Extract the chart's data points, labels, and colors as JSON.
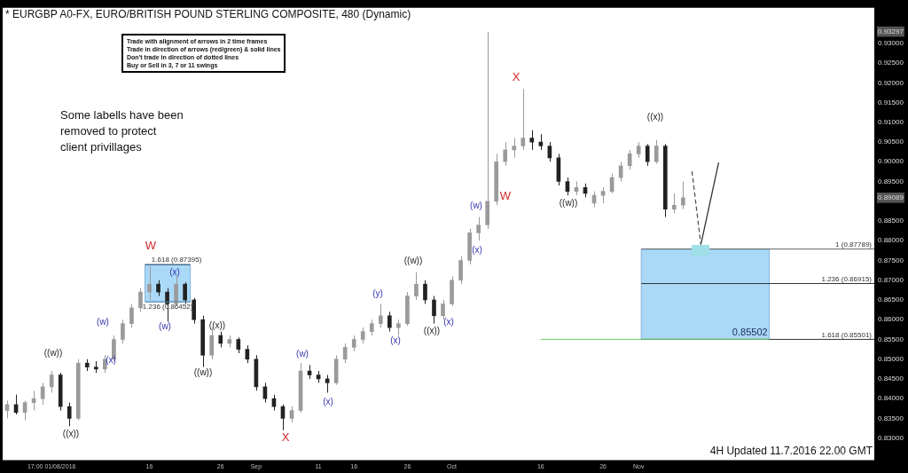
{
  "chart_data": {
    "type": "candlestick",
    "title": "* EURGBP A0-FX, EURO/BRITISH POUND STERLING COMPOSITE, 480 (Dynamic)",
    "categories": [
      null,
      null,
      null,
      null,
      null,
      "17:00 01/08/2016",
      null,
      null,
      null,
      null,
      null,
      null,
      null,
      null,
      null,
      null,
      "16",
      null,
      null,
      null,
      null,
      null,
      null,
      null,
      "26",
      null,
      null,
      null,
      "Sep",
      null,
      null,
      null,
      null,
      null,
      null,
      "11",
      null,
      null,
      null,
      "16",
      null,
      null,
      null,
      null,
      null,
      "26",
      null,
      null,
      null,
      null,
      "Oct",
      null,
      null,
      null,
      null,
      null,
      null,
      null,
      null,
      null,
      "16",
      null,
      null,
      null,
      null,
      null,
      null,
      "26",
      null,
      null,
      null,
      "Nov",
      null,
      null,
      null,
      null,
      null,
      null,
      null,
      null,
      null,
      null,
      null,
      null,
      null,
      null,
      null,
      null,
      null,
      null,
      null,
      null,
      null,
      null,
      null,
      null,
      null,
      null
    ],
    "ohlc": [
      [
        0.837,
        0.8395,
        0.835,
        0.8385
      ],
      [
        0.8385,
        0.841,
        0.836,
        0.8365
      ],
      [
        0.8365,
        0.8395,
        0.8345,
        0.839
      ],
      [
        0.839,
        0.842,
        0.837,
        0.84
      ],
      [
        0.84,
        0.844,
        0.8385,
        0.843
      ],
      [
        0.843,
        0.847,
        0.8415,
        0.846
      ],
      [
        0.846,
        0.8465,
        0.837,
        0.838
      ],
      [
        0.838,
        0.839,
        0.833,
        0.835
      ],
      [
        0.835,
        0.85,
        0.8345,
        0.849
      ],
      [
        0.849,
        0.85,
        0.847,
        0.848
      ],
      [
        0.848,
        0.8495,
        0.8465,
        0.8475
      ],
      [
        0.8475,
        0.851,
        0.8465,
        0.85
      ],
      [
        0.85,
        0.856,
        0.8495,
        0.855
      ],
      [
        0.855,
        0.86,
        0.854,
        0.859
      ],
      [
        0.859,
        0.864,
        0.858,
        0.863
      ],
      [
        0.863,
        0.868,
        0.862,
        0.867
      ],
      [
        0.867,
        0.8735,
        0.865,
        0.869
      ],
      [
        0.869,
        0.87,
        0.866,
        0.867
      ],
      [
        0.867,
        0.868,
        0.8595,
        0.864
      ],
      [
        0.864,
        0.871,
        0.8635,
        0.869
      ],
      [
        0.869,
        0.8695,
        0.864,
        0.865
      ],
      [
        0.865,
        0.8655,
        0.859,
        0.86
      ],
      [
        0.86,
        0.861,
        0.848,
        0.851
      ],
      [
        0.851,
        0.858,
        0.85,
        0.856
      ],
      [
        0.856,
        0.857,
        0.853,
        0.854
      ],
      [
        0.854,
        0.856,
        0.853,
        0.855
      ],
      [
        0.855,
        0.8555,
        0.8515,
        0.8525
      ],
      [
        0.8525,
        0.8535,
        0.849,
        0.85
      ],
      [
        0.85,
        0.851,
        0.842,
        0.843
      ],
      [
        0.843,
        0.844,
        0.839,
        0.84
      ],
      [
        0.84,
        0.841,
        0.837,
        0.838
      ],
      [
        0.838,
        0.8385,
        0.832,
        0.835
      ],
      [
        0.835,
        0.838,
        0.834,
        0.837
      ],
      [
        0.837,
        0.849,
        0.8365,
        0.847
      ],
      [
        0.847,
        0.8485,
        0.845,
        0.846
      ],
      [
        0.846,
        0.847,
        0.844,
        0.845
      ],
      [
        0.845,
        0.846,
        0.8415,
        0.844
      ],
      [
        0.844,
        0.851,
        0.8435,
        0.85
      ],
      [
        0.85,
        0.854,
        0.849,
        0.853
      ],
      [
        0.853,
        0.856,
        0.852,
        0.855
      ],
      [
        0.855,
        0.858,
        0.854,
        0.857
      ],
      [
        0.857,
        0.86,
        0.856,
        0.859
      ],
      [
        0.859,
        0.864,
        0.858,
        0.861
      ],
      [
        0.861,
        0.862,
        0.857,
        0.858
      ],
      [
        0.858,
        0.86,
        0.856,
        0.859
      ],
      [
        0.859,
        0.867,
        0.8585,
        0.866
      ],
      [
        0.866,
        0.872,
        0.865,
        0.869
      ],
      [
        0.869,
        0.87,
        0.864,
        0.865
      ],
      [
        0.865,
        0.866,
        0.859,
        0.861
      ],
      [
        0.861,
        0.865,
        0.86,
        0.864
      ],
      [
        0.864,
        0.871,
        0.8635,
        0.87
      ],
      [
        0.87,
        0.876,
        0.869,
        0.875
      ],
      [
        0.875,
        0.883,
        0.874,
        0.882
      ],
      [
        0.882,
        0.886,
        0.88,
        0.884
      ],
      [
        0.884,
        0.9329,
        0.883,
        0.89
      ],
      [
        0.89,
        0.902,
        0.889,
        0.9
      ],
      [
        0.9,
        0.905,
        0.899,
        0.903
      ],
      [
        0.903,
        0.906,
        0.901,
        0.904
      ],
      [
        0.904,
        0.9184,
        0.903,
        0.906
      ],
      [
        0.906,
        0.908,
        0.903,
        0.905
      ],
      [
        0.905,
        0.907,
        0.903,
        0.904
      ],
      [
        0.904,
        0.905,
        0.9,
        0.901
      ],
      [
        0.901,
        0.902,
        0.894,
        0.895
      ],
      [
        0.895,
        0.896,
        0.8915,
        0.8925
      ],
      [
        0.8925,
        0.895,
        0.8915,
        0.8935
      ],
      [
        0.8935,
        0.8945,
        0.891,
        0.892
      ],
      [
        0.8895,
        0.8925,
        0.8885,
        0.8915
      ],
      [
        0.8915,
        0.8935,
        0.8895,
        0.8925
      ],
      [
        0.8925,
        0.897,
        0.892,
        0.896
      ],
      [
        0.896,
        0.9,
        0.895,
        0.899
      ],
      [
        0.899,
        0.903,
        0.898,
        0.902
      ],
      [
        0.902,
        0.905,
        0.901,
        0.904
      ],
      [
        0.904,
        0.9045,
        0.899,
        0.9
      ],
      [
        0.9,
        0.9055,
        0.8995,
        0.904
      ],
      [
        0.904,
        0.9045,
        0.886,
        0.888
      ],
      [
        0.888,
        0.892,
        0.887,
        0.889
      ],
      [
        0.889,
        0.895,
        0.888,
        0.8909
      ],
      null,
      null,
      null,
      null,
      null,
      null,
      null,
      null,
      null,
      null,
      null,
      null,
      null,
      null,
      null,
      null,
      null,
      null,
      null,
      null,
      null
    ],
    "colors": [
      "#9a9a9a",
      "#222222",
      "#9a9a9a",
      "#9a9a9a",
      "#9a9a9a",
      "#9a9a9a",
      "#222222",
      "#222222",
      "#9a9a9a",
      "#222222",
      "#222222",
      "#9a9a9a",
      "#9a9a9a",
      "#9a9a9a",
      "#9a9a9a",
      "#9a9a9a",
      "#9a9a9a",
      "#222222",
      "#222222",
      "#9a9a9a",
      "#222222",
      "#222222",
      "#222222",
      "#9a9a9a",
      "#222222",
      "#9a9a9a",
      "#222222",
      "#222222",
      "#222222",
      "#222222",
      "#222222",
      "#222222",
      "#9a9a9a",
      "#9a9a9a",
      "#222222",
      "#222222",
      "#222222",
      "#9a9a9a",
      "#9a9a9a",
      "#9a9a9a",
      "#9a9a9a",
      "#9a9a9a",
      "#9a9a9a",
      "#222222",
      "#9a9a9a",
      "#9a9a9a",
      "#9a9a9a",
      "#222222",
      "#222222",
      "#9a9a9a",
      "#9a9a9a",
      "#9a9a9a",
      "#9a9a9a",
      "#9a9a9a",
      "#9a9a9a",
      "#9a9a9a",
      "#9a9a9a",
      "#9a9a9a",
      "#9a9a9a",
      "#222222",
      "#222222",
      "#222222",
      "#222222",
      "#222222",
      "#9a9a9a",
      "#222222",
      "#9a9a9a",
      "#9a9a9a",
      "#9a9a9a",
      "#9a9a9a",
      "#9a9a9a",
      "#9a9a9a",
      "#222222",
      "#9a9a9a",
      "#222222",
      "#9a9a9a",
      "#9a9a9a",
      null,
      null,
      null,
      null,
      null,
      null,
      null,
      null,
      null,
      null,
      null,
      null,
      null,
      null,
      null,
      null,
      null,
      null,
      null,
      null,
      null
    ],
    "series": [
      {
        "type": "line",
        "values": [
          null,
          null,
          null,
          null,
          null,
          null,
          null,
          null,
          null,
          null,
          null,
          null,
          null,
          null,
          null,
          null,
          null,
          null,
          null,
          null,
          null,
          null,
          null,
          null,
          null,
          null,
          null,
          null,
          null,
          null,
          null,
          null,
          null,
          null,
          null,
          null,
          null,
          null,
          null,
          null,
          null,
          null,
          null,
          null,
          null,
          null,
          null,
          null,
          null,
          null,
          null,
          null,
          null,
          null,
          null,
          null,
          null,
          null,
          null,
          null,
          null,
          null,
          null,
          null,
          null,
          null,
          null,
          null,
          null,
          null,
          null,
          null,
          null,
          null,
          null,
          null,
          null,
          0.8976,
          0.879,
          null,
          null,
          null,
          null,
          null,
          null,
          null,
          null,
          null,
          null,
          null,
          null,
          null,
          null,
          null,
          null,
          null,
          null,
          null
        ],
        "color": "#555555",
        "line_style": "dashed"
      },
      {
        "type": "line",
        "values": [
          null,
          null,
          null,
          null,
          null,
          null,
          null,
          null,
          null,
          null,
          null,
          null,
          null,
          null,
          null,
          null,
          null,
          null,
          null,
          null,
          null,
          null,
          null,
          null,
          null,
          null,
          null,
          null,
          null,
          null,
          null,
          null,
          null,
          null,
          null,
          null,
          null,
          null,
          null,
          null,
          null,
          null,
          null,
          null,
          null,
          null,
          null,
          null,
          null,
          null,
          null,
          null,
          null,
          null,
          null,
          null,
          null,
          null,
          null,
          null,
          null,
          null,
          null,
          null,
          null,
          null,
          null,
          null,
          null,
          null,
          null,
          null,
          null,
          null,
          null,
          null,
          null,
          null,
          0.879,
          null,
          0.8998,
          null,
          null,
          null,
          null,
          null,
          null,
          null,
          null,
          null,
          null,
          null,
          null,
          null,
          null,
          null,
          null,
          null
        ],
        "color": "#333333",
        "line_style": "solid"
      }
    ],
    "ylim": [
      0.8244,
      0.939
    ],
    "yticks": [
      {
        "value": 0.83,
        "label": "0.83000"
      },
      {
        "value": 0.835,
        "label": "0.83500"
      },
      {
        "value": 0.84,
        "label": "0.84000"
      },
      {
        "value": 0.845,
        "label": "0.84500"
      },
      {
        "value": 0.85,
        "label": "0.85000"
      },
      {
        "value": 0.855,
        "label": "0.85500"
      },
      {
        "value": 0.86,
        "label": "0.86000"
      },
      {
        "value": 0.865,
        "label": "0.86500"
      },
      {
        "value": 0.87,
        "label": "0.87000"
      },
      {
        "value": 0.875,
        "label": "0.87500"
      },
      {
        "value": 0.88,
        "label": "0.88000"
      },
      {
        "value": 0.885,
        "label": "0.88500"
      },
      {
        "value": 0.89089,
        "label": "0.89089"
      },
      {
        "value": 0.895,
        "label": "0.89500"
      },
      {
        "value": 0.9,
        "label": "0.90000"
      },
      {
        "value": 0.905,
        "label": "0.90500"
      },
      {
        "value": 0.91,
        "label": "0.91000"
      },
      {
        "value": 0.915,
        "label": "0.91500"
      },
      {
        "value": 0.92,
        "label": "0.92000"
      },
      {
        "value": 0.925,
        "label": "0.92500"
      },
      {
        "value": 0.93,
        "label": "0.93000"
      },
      {
        "value": 0.93297,
        "label": "0.93297"
      }
    ],
    "bands": [
      {
        "axis": "y",
        "from": 0.86452,
        "to": 0.87395,
        "color": "#aad8f7"
      },
      {
        "axis": "y",
        "from": 0.85501,
        "to": 0.87789,
        "color": "#aad8f7"
      }
    ],
    "ref_lines": [
      {
        "axis": "y",
        "value": 0.87395,
        "label": "1.618 (0.87395)",
        "color": "#2a4a6a"
      },
      {
        "axis": "y",
        "value": 0.86452,
        "label": "1.236 (0.86452)",
        "color": "#5a8ab0"
      },
      {
        "axis": "y",
        "value": 0.87789,
        "label": "1 (0.87789)",
        "color": "#666666"
      },
      {
        "axis": "y",
        "value": 0.86915,
        "label": "1.236 (0.86915)",
        "color": "#333333"
      },
      {
        "axis": "y",
        "value": 0.85501,
        "label": "1.618 (0.85501)",
        "color": "#333333"
      },
      {
        "axis": "y",
        "value": 0.85502,
        "label": "0.85502",
        "color": "#66cc66"
      }
    ],
    "annotations": [
      "Trade with alignment of arrows in 2 time frames\nTrade in direction of arrows (red/green) & solid lines\nDon't trade in direction of dotted lines\nBuy or Sell in 3, 7 or 11 swings",
      "Some labells have been removed to protect client privillages",
      "4H Updated 11.7.2016 22.00 GMT",
      "((w))",
      "((x))",
      "(w)",
      "(x)",
      "W",
      "(w)",
      "(x)",
      "((w))",
      "((x))",
      "X",
      "(w)",
      "(x)",
      "(y)",
      "(x)",
      "((w))",
      "((x))",
      "(x)",
      "(x)",
      "(w)",
      "W",
      "X",
      "((w))",
      "((x))"
    ],
    "legend": false,
    "grid": false
  }
}
